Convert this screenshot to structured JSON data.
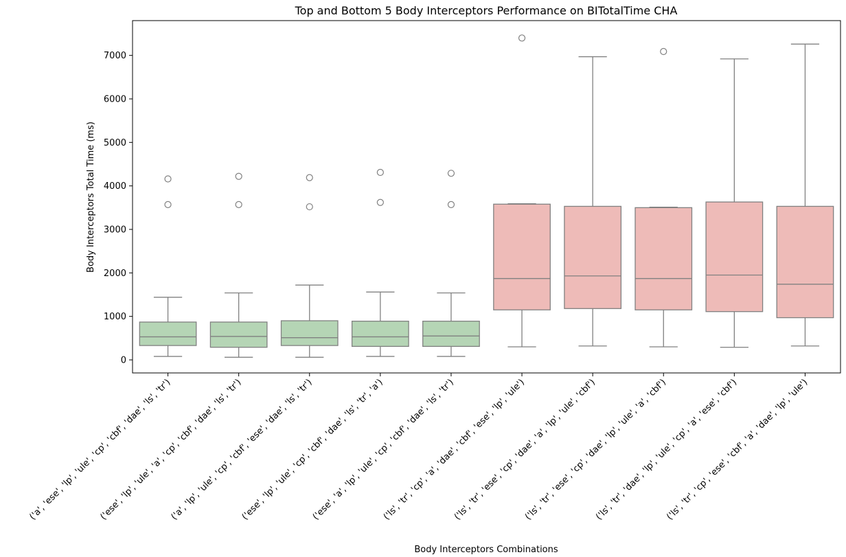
{
  "chart_data": {
    "type": "box",
    "title": "Top and Bottom 5 Body Interceptors Performance on BITotalTime CHA",
    "xlabel": "Body Interceptors Combinations",
    "ylabel": "Body Interceptors Total Time (ms)",
    "ylim": [
      -300,
      7800
    ],
    "yticks": [
      0,
      1000,
      2000,
      3000,
      4000,
      5000,
      6000,
      7000
    ],
    "grid": false,
    "colors": {
      "top": "#b5d5b5",
      "bottom": "#eebbb8",
      "edge": "#808080"
    },
    "categories": [
      "('a', 'ese', 'lp', 'ule', 'cp', 'cbf', 'dae', 'ls', 'tr')",
      "('ese', 'lp', 'ule', 'a', 'cp', 'cbf', 'dae', 'ls', 'tr')",
      "('a', 'lp', 'ule', 'cp', 'cbf', 'ese', 'dae', 'ls', 'tr')",
      "('ese', 'lp', 'ule', 'cp', 'cbf', 'dae', 'ls', 'tr', 'a')",
      "('ese', 'a', 'lp', 'ule', 'cp', 'cbf', 'dae', 'ls', 'tr')",
      "('ls', 'tr', 'cp', 'a', 'dae', 'cbf', 'ese', 'lp', 'ule')",
      "('ls', 'tr', 'ese', 'cp', 'dae', 'a', 'lp', 'ule', 'cbf')",
      "('ls', 'tr', 'ese', 'cp', 'dae', 'lp', 'ule', 'a', 'cbf')",
      "('ls', 'tr', 'dae', 'lp', 'ule', 'cp', 'a', 'ese', 'cbf')",
      "('ls', 'tr', 'cp', 'ese', 'cbf', 'a', 'dae', 'lp', 'ule')"
    ],
    "boxes": [
      {
        "group": "top",
        "whisker_low": 80,
        "q1": 330,
        "median": 530,
        "q3": 870,
        "whisker_high": 1440,
        "outliers": [
          3570,
          4160
        ]
      },
      {
        "group": "top",
        "whisker_low": 60,
        "q1": 290,
        "median": 540,
        "q3": 870,
        "whisker_high": 1540,
        "outliers": [
          3570,
          4220
        ]
      },
      {
        "group": "top",
        "whisker_low": 60,
        "q1": 330,
        "median": 510,
        "q3": 900,
        "whisker_high": 1720,
        "outliers": [
          3520,
          4190
        ]
      },
      {
        "group": "top",
        "whisker_low": 80,
        "q1": 310,
        "median": 530,
        "q3": 890,
        "whisker_high": 1560,
        "outliers": [
          3620,
          4310
        ]
      },
      {
        "group": "top",
        "whisker_low": 80,
        "q1": 310,
        "median": 550,
        "q3": 890,
        "whisker_high": 1540,
        "outliers": [
          3570,
          4290
        ]
      },
      {
        "group": "bottom",
        "whisker_low": 300,
        "q1": 1150,
        "median": 1870,
        "q3": 3580,
        "whisker_high": 3590,
        "outliers": [
          7400
        ]
      },
      {
        "group": "bottom",
        "whisker_low": 320,
        "q1": 1180,
        "median": 1930,
        "q3": 3530,
        "whisker_high": 6970,
        "outliers": []
      },
      {
        "group": "bottom",
        "whisker_low": 300,
        "q1": 1150,
        "median": 1870,
        "q3": 3500,
        "whisker_high": 3510,
        "outliers": [
          7090
        ]
      },
      {
        "group": "bottom",
        "whisker_low": 290,
        "q1": 1110,
        "median": 1950,
        "q3": 3630,
        "whisker_high": 6920,
        "outliers": []
      },
      {
        "group": "bottom",
        "whisker_low": 320,
        "q1": 970,
        "median": 1740,
        "q3": 3530,
        "whisker_high": 7260,
        "outliers": []
      }
    ]
  }
}
